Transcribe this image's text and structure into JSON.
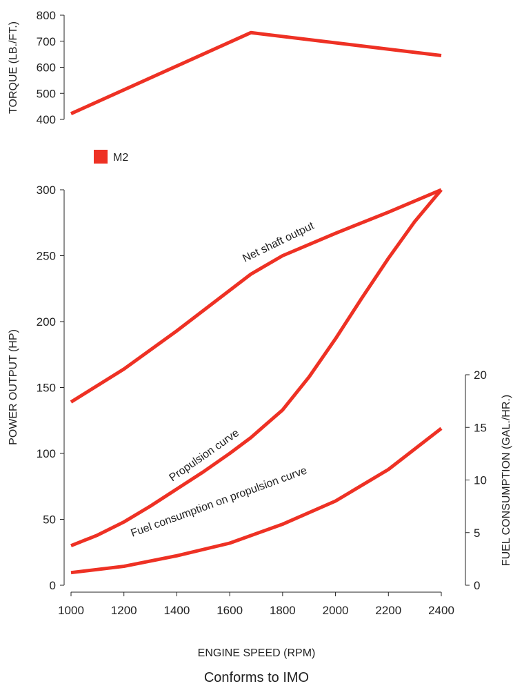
{
  "caption": "Conforms to IMO",
  "legend": {
    "label": "M2",
    "color": "#ee3124"
  },
  "chart_data": [
    {
      "type": "line",
      "x": [
        1000,
        1680,
        2400
      ],
      "ylabel": "TORQUE (LB./FT.)",
      "ylim": [
        400,
        800
      ],
      "yticks": [
        400,
        500,
        600,
        700,
        800
      ],
      "grid": false,
      "series": [
        {
          "name": "M2",
          "values": [
            422,
            733,
            645
          ],
          "color": "#ee3124"
        }
      ]
    },
    {
      "type": "line",
      "xlabel": "ENGINE SPEED (RPM)",
      "ylabel": "POWER OUTPUT (HP)",
      "y2label": "FUEL CONSUMPTION (GAL./HR.)",
      "xlim": [
        1000,
        2400
      ],
      "xticks": [
        1000,
        1200,
        1400,
        1600,
        1800,
        2000,
        2200,
        2400
      ],
      "ylim": [
        0,
        300
      ],
      "yticks": [
        0,
        50,
        100,
        150,
        200,
        250,
        300
      ],
      "y2lim": [
        0,
        20
      ],
      "y2ticks": [
        0,
        5,
        10,
        15,
        20
      ],
      "grid": false,
      "series": [
        {
          "name": "Net shaft output",
          "axis": "left",
          "color": "#ee3124",
          "points": [
            [
              1000,
              139
            ],
            [
              1200,
              164
            ],
            [
              1400,
              193
            ],
            [
              1680,
              236
            ],
            [
              1800,
              250
            ],
            [
              2000,
              267
            ],
            [
              2200,
              283
            ],
            [
              2400,
              300
            ]
          ]
        },
        {
          "name": "Propulsion curve",
          "axis": "left",
          "color": "#ee3124",
          "points": [
            [
              1000,
              30
            ],
            [
              1100,
              38
            ],
            [
              1200,
              48
            ],
            [
              1300,
              60
            ],
            [
              1400,
              73
            ],
            [
              1500,
              86
            ],
            [
              1600,
              100
            ],
            [
              1680,
              112
            ],
            [
              1800,
              133
            ],
            [
              1900,
              158
            ],
            [
              2000,
              187
            ],
            [
              2100,
              218
            ],
            [
              2200,
              248
            ],
            [
              2300,
              276
            ],
            [
              2400,
              300
            ]
          ]
        },
        {
          "name": "Fuel consumption on propulsion curve",
          "axis": "right",
          "color": "#ee3124",
          "points": [
            [
              1000,
              1.2
            ],
            [
              1200,
              1.8
            ],
            [
              1400,
              2.8
            ],
            [
              1600,
              4.0
            ],
            [
              1800,
              5.8
            ],
            [
              2000,
              8.0
            ],
            [
              2200,
              11.0
            ],
            [
              2400,
              14.9
            ]
          ]
        }
      ]
    }
  ]
}
